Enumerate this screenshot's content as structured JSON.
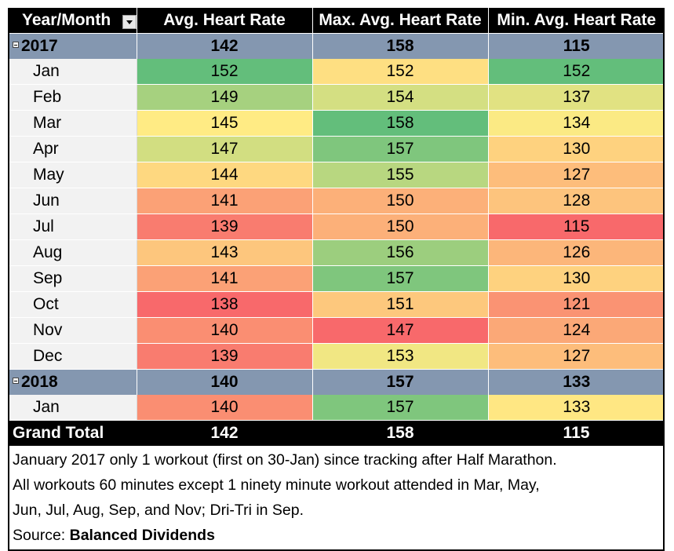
{
  "headers": [
    "Year/Month",
    "Avg. Heart Rate",
    "Max. Avg. Heart Rate",
    "Min. Avg. Heart Rate"
  ],
  "years": [
    {
      "year": "2017",
      "avg": "142",
      "max": "158",
      "min": "115",
      "months": [
        {
          "month": "Jan",
          "avg": "152",
          "max": "152",
          "min": "152"
        },
        {
          "month": "Feb",
          "avg": "149",
          "max": "154",
          "min": "137"
        },
        {
          "month": "Mar",
          "avg": "145",
          "max": "158",
          "min": "134"
        },
        {
          "month": "Apr",
          "avg": "147",
          "max": "157",
          "min": "130"
        },
        {
          "month": "May",
          "avg": "144",
          "max": "155",
          "min": "127"
        },
        {
          "month": "Jun",
          "avg": "141",
          "max": "150",
          "min": "128"
        },
        {
          "month": "Jul",
          "avg": "139",
          "max": "150",
          "min": "115"
        },
        {
          "month": "Aug",
          "avg": "143",
          "max": "156",
          "min": "126"
        },
        {
          "month": "Sep",
          "avg": "141",
          "max": "157",
          "min": "130"
        },
        {
          "month": "Oct",
          "avg": "138",
          "max": "151",
          "min": "121"
        },
        {
          "month": "Nov",
          "avg": "140",
          "max": "147",
          "min": "124"
        },
        {
          "month": "Dec",
          "avg": "139",
          "max": "153",
          "min": "127"
        }
      ]
    },
    {
      "year": "2018",
      "avg": "140",
      "max": "157",
      "min": "133",
      "months": [
        {
          "month": "Jan",
          "avg": "140",
          "max": "157",
          "min": "133"
        }
      ]
    }
  ],
  "grand_total": {
    "label": "Grand Total",
    "avg": "142",
    "max": "158",
    "min": "115"
  },
  "notes": {
    "line1": "January 2017 only 1 workout (first on 30-Jan) since tracking after Half Marathon.",
    "line2": "All workouts 60 minutes except 1 ninety minute workout attended in Mar, May,",
    "line3": "Jun, Jul, Aug, Sep, and Nov; Dri-Tri in Sep.",
    "source_prefix": "Source: ",
    "source_name": "Balanced Dividends"
  },
  "colors": {
    "header_bg": "#000000",
    "year_row_bg": "#8497b0",
    "month_label_bg": "#f2f2f2",
    "scale_low": "#f8696b",
    "scale_mid": "#ffeb84",
    "scale_high": "#63be7b"
  },
  "icons": {
    "filter": "filter-dropdown-icon",
    "collapse": "collapse-minus-icon"
  }
}
